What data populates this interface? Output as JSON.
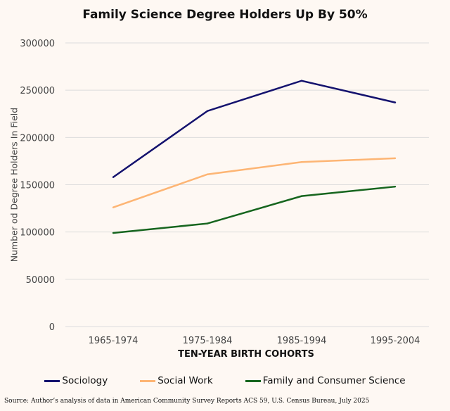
{
  "chart_data": {
    "type": "line",
    "title": "Family Science Degree Holders Up By 50%",
    "xlabel": "TEN-YEAR BIRTH COHORTS",
    "ylabel": "Number od Degree Holders In Field",
    "categories": [
      "1965-1974",
      "1975-1984",
      "1985-1994",
      "1995-2004"
    ],
    "ylim": [
      0,
      300000
    ],
    "yticks": [
      0,
      50000,
      100000,
      150000,
      200000,
      250000,
      300000
    ],
    "grid": true,
    "legend": "bottom",
    "series": [
      {
        "name": "Sociology",
        "color": "#14126e",
        "values": [
          158000,
          228000,
          260000,
          237000
        ]
      },
      {
        "name": "Social Work",
        "color": "#fdb574",
        "values": [
          126000,
          161000,
          174000,
          178000
        ]
      },
      {
        "name": "Family and Consumer Science",
        "color": "#16651e",
        "values": [
          99000,
          109000,
          138000,
          148000
        ]
      }
    ]
  },
  "source": "Source: Author’s analysis of data in American Community Survey Reports ACS 59, U.S. Census Bureau, July 2025"
}
